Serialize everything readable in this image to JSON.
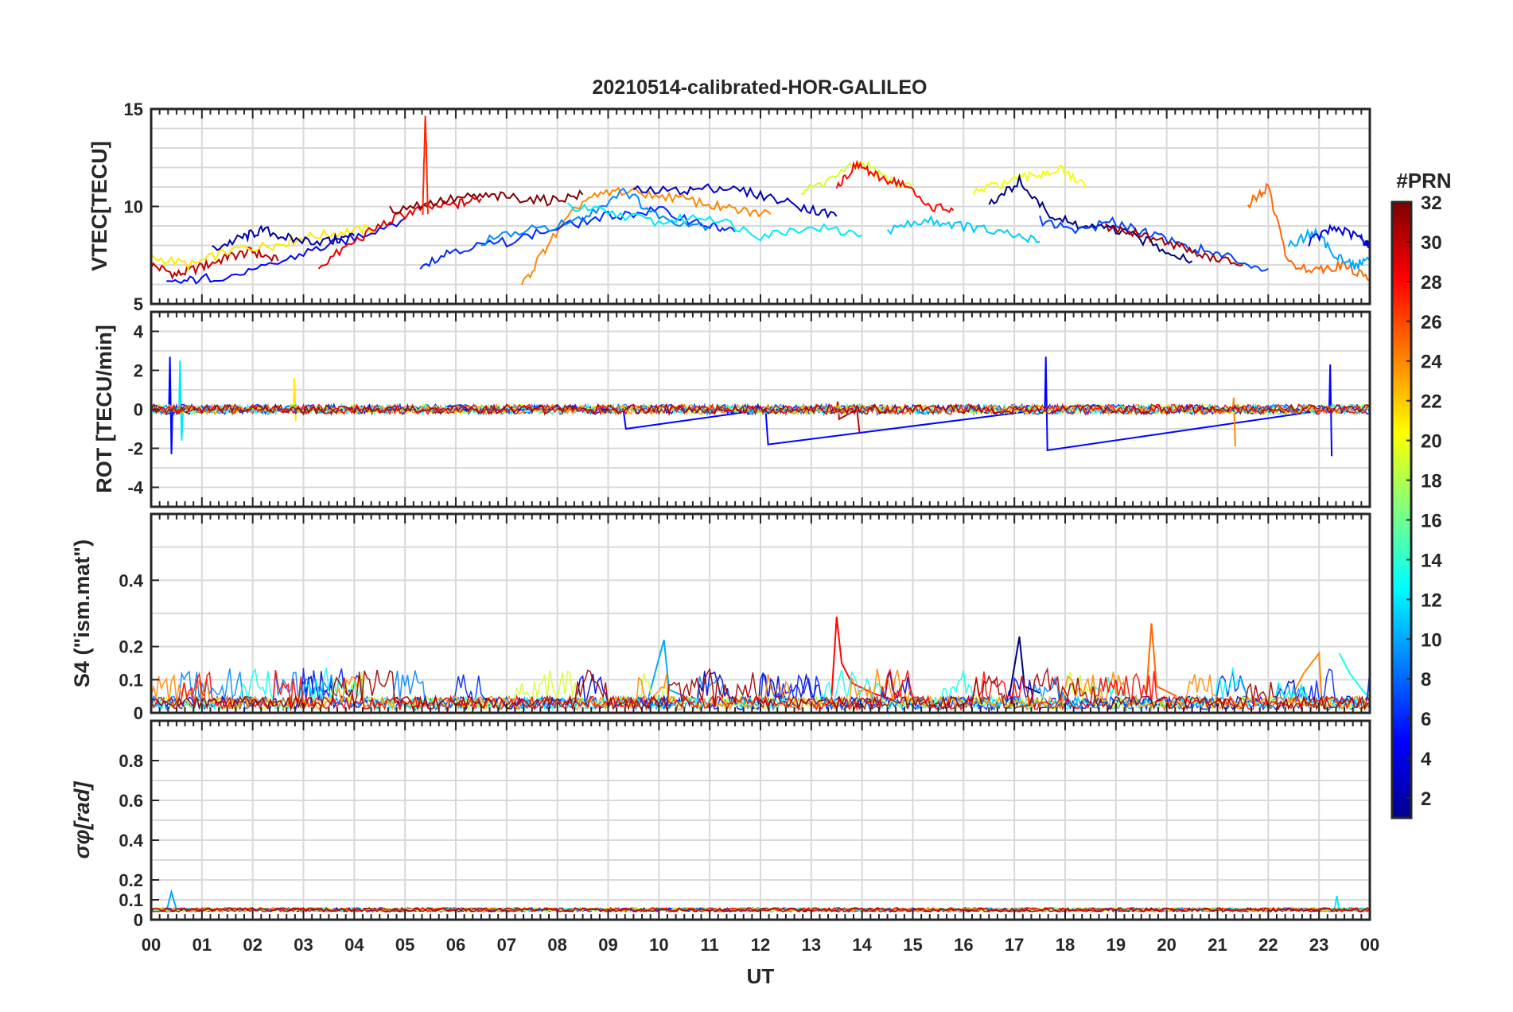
{
  "title": "20210514-calibrated-HOR-GALILEO",
  "colorbar": {
    "label": "#PRN",
    "range": [
      1,
      32
    ],
    "ticks": [
      "32",
      "30",
      "28",
      "26",
      "24",
      "22",
      "20",
      "18",
      "16",
      "14",
      "12",
      "10",
      "8",
      "6",
      "4",
      "2"
    ],
    "colormap": "jet"
  },
  "chart_data": [
    {
      "type": "line",
      "panel": "vtec",
      "ylabel": "VTEC[TECU]",
      "ylim": [
        5,
        15
      ],
      "yticks": [
        "15",
        "10",
        "5"
      ],
      "xlim": [
        0,
        24
      ],
      "grid": true,
      "series": [
        {
          "name": "PRN 30",
          "prn": 30,
          "x": [
            0,
            0.5,
            1,
            1.5,
            2,
            2.5
          ],
          "y": [
            7,
            6.5,
            6.9,
            7.4,
            7.7,
            7.2
          ]
        },
        {
          "name": "PRN 21",
          "prn": 21,
          "x": [
            0,
            0.8,
            1.6,
            2.4,
            3,
            3.8,
            4.5
          ],
          "y": [
            7.4,
            7.0,
            7.8,
            8.0,
            8.4,
            8.7,
            8.9
          ]
        },
        {
          "name": "PRN 5",
          "prn": 5,
          "x": [
            0.3,
            1,
            2,
            3,
            4,
            5
          ],
          "y": [
            6.0,
            6.3,
            6.6,
            7.6,
            8.4,
            9.4
          ]
        },
        {
          "name": "PRN 2",
          "prn": 2,
          "x": [
            1.2,
            1.8,
            2.2,
            2.8,
            3.5,
            4.0
          ],
          "y": [
            7.8,
            8.4,
            8.8,
            8.3,
            8.2,
            8.5
          ]
        },
        {
          "name": "PRN 29",
          "prn": 29,
          "x": [
            3.3,
            4,
            4.7,
            5.3,
            6,
            6.5
          ],
          "y": [
            6.9,
            8.2,
            9.3,
            9.9,
            10.1,
            10.4
          ]
        },
        {
          "name": "PRN 32",
          "prn": 32,
          "x": [
            4.7,
            5.5,
            6.3,
            7,
            7.8,
            8.5
          ],
          "y": [
            9.8,
            10.2,
            10.5,
            10.5,
            10.3,
            10.6
          ]
        },
        {
          "name": "PRN 27",
          "prn": 27,
          "x": [
            5.35,
            5.4,
            5.45
          ],
          "y": [
            9.8,
            14.8,
            9.6
          ]
        },
        {
          "name": "PRN 24",
          "prn": 24,
          "x": [
            7.3,
            7.8,
            8.5,
            9.2,
            10,
            10.8,
            11.5,
            12.2
          ],
          "y": [
            5.9,
            8.0,
            10.3,
            10.8,
            10.6,
            10.2,
            9.8,
            9.6
          ]
        },
        {
          "name": "PRN 6",
          "prn": 6,
          "x": [
            5.3,
            6,
            7,
            8,
            9,
            10,
            11,
            11.5
          ],
          "y": [
            7.0,
            7.8,
            8.2,
            8.9,
            9.5,
            9.8,
            9.0,
            8.7
          ]
        },
        {
          "name": "PRN 9",
          "prn": 9,
          "x": [
            6.5,
            7.5,
            8.5,
            9.3,
            10,
            11
          ],
          "y": [
            8.2,
            8.8,
            9.3,
            10.9,
            9.4,
            9.0
          ]
        },
        {
          "name": "PRN 12",
          "prn": 12,
          "x": [
            8.2,
            9,
            10,
            11,
            12,
            13,
            14
          ],
          "y": [
            10.0,
            9.7,
            9.2,
            9.5,
            8.5,
            9.0,
            8.5
          ]
        },
        {
          "name": "PRN 3",
          "prn": 3,
          "x": [
            9.5,
            10.5,
            11.2,
            12,
            12.8,
            13.5
          ],
          "y": [
            10.8,
            10.8,
            11.0,
            10.6,
            10.0,
            9.5
          ]
        },
        {
          "name": "PRN 19",
          "prn": 19,
          "x": [
            12.8,
            13.3,
            14,
            14.5,
            15
          ],
          "y": [
            10.7,
            11.3,
            12.3,
            11.4,
            11.0
          ]
        },
        {
          "name": "PRN 28",
          "prn": 28,
          "x": [
            13.5,
            13.9,
            14.3,
            14.8,
            15.3,
            15.8
          ],
          "y": [
            11.0,
            12.2,
            11.5,
            11.2,
            10.0,
            9.8
          ]
        },
        {
          "name": "PRN 11",
          "prn": 11,
          "x": [
            14.5,
            15.3,
            16,
            16.8,
            17.5
          ],
          "y": [
            8.8,
            9.3,
            9.0,
            8.6,
            8.2
          ]
        },
        {
          "name": "PRN 20",
          "prn": 20,
          "x": [
            16.2,
            16.8,
            17.4,
            17.9,
            18.4
          ],
          "y": [
            10.7,
            11.2,
            11.6,
            11.9,
            11.0
          ]
        },
        {
          "name": "PRN 1",
          "prn": 1,
          "x": [
            16.5,
            17.1,
            17.7,
            18.3,
            19,
            19.8,
            20.5
          ],
          "y": [
            10.0,
            11.3,
            9.5,
            9.0,
            8.8,
            8.0,
            7.2
          ]
        },
        {
          "name": "PRN 7",
          "prn": 7,
          "x": [
            17.5,
            18.2,
            19,
            19.7,
            20.5,
            21.2,
            22
          ],
          "y": [
            9.3,
            8.8,
            9.2,
            8.6,
            7.9,
            7.4,
            6.8
          ]
        },
        {
          "name": "PRN 31",
          "prn": 31,
          "x": [
            18.8,
            19.5,
            20.2,
            20.8,
            21.5
          ],
          "y": [
            9.0,
            8.6,
            8.0,
            7.4,
            7.0
          ]
        },
        {
          "name": "PRN 25",
          "prn": 25,
          "x": [
            21.6,
            22,
            22.4,
            23,
            23.5,
            24
          ],
          "y": [
            10.1,
            11.0,
            7.0,
            6.8,
            7.0,
            6.2
          ]
        },
        {
          "name": "PRN 10",
          "prn": 10,
          "x": [
            22.4,
            22.9,
            23.3,
            23.7,
            24
          ],
          "y": [
            8.0,
            8.7,
            7.6,
            6.9,
            7.4
          ]
        },
        {
          "name": "PRN 4",
          "prn": 4,
          "x": [
            22.8,
            23.3,
            23.8,
            24
          ],
          "y": [
            8.2,
            8.9,
            8.4,
            8.0
          ]
        }
      ]
    },
    {
      "type": "line",
      "panel": "rot",
      "ylabel": "ROT [TECU/min]",
      "ylim": [
        -5,
        5
      ],
      "yticks": [
        "4",
        "2",
        "0",
        "-2",
        "-4"
      ],
      "xlim": [
        0,
        24
      ],
      "grid": true,
      "series": [
        {
          "name": "PRN 5 spikes",
          "prn": 5,
          "x": [
            0.35,
            0.37,
            0.4,
            0.42,
            9.3,
            9.35,
            12.1,
            12.15,
            17.6,
            17.62,
            17.65,
            23.2,
            23.22,
            23.25
          ],
          "y": [
            0,
            2.7,
            -2.3,
            0,
            0,
            -1.0,
            0,
            -1.8,
            0,
            2.7,
            -2.1,
            0,
            2.3,
            -2.4
          ]
        },
        {
          "name": "PRN 12 spikes",
          "prn": 12,
          "x": [
            0.55,
            0.57,
            0.6,
            0.63
          ],
          "y": [
            0,
            2.5,
            -1.6,
            0
          ]
        },
        {
          "name": "PRN 21 spike",
          "prn": 21,
          "x": [
            2.8,
            2.82,
            2.85
          ],
          "y": [
            0,
            1.6,
            -0.6
          ]
        },
        {
          "name": "PRN 24 spike",
          "prn": 24,
          "x": [
            21.3,
            21.32,
            21.35
          ],
          "y": [
            0,
            0.6,
            -1.9
          ]
        },
        {
          "name": "PRN 30 spike",
          "prn": 30,
          "x": [
            13.5,
            13.52,
            13.55,
            13.9,
            13.95
          ],
          "y": [
            0,
            0.4,
            -0.5,
            0,
            -1.2
          ]
        }
      ]
    },
    {
      "type": "line",
      "panel": "s4",
      "ylabel": "S4 (\"ism.mat\")",
      "ylim": [
        0,
        0.6
      ],
      "yticks": [
        "0.4",
        "0.2",
        "0.1",
        "0"
      ],
      "xlim": [
        0,
        24
      ],
      "grid": true,
      "series": [
        {
          "name": "PRN 28 peak",
          "prn": 28,
          "x": [
            13.4,
            13.5,
            13.6,
            13.8,
            14.2,
            14.6
          ],
          "y": [
            0.05,
            0.29,
            0.15,
            0.09,
            0.06,
            0.04
          ]
        },
        {
          "name": "PRN 25 peak",
          "prn": 25,
          "x": [
            19.6,
            19.7,
            19.8,
            20.2
          ],
          "y": [
            0.06,
            0.27,
            0.08,
            0.05
          ]
        },
        {
          "name": "PRN 1 peak",
          "prn": 1,
          "x": [
            16.9,
            17.1,
            17.2,
            17.5
          ],
          "y": [
            0.05,
            0.23,
            0.08,
            0.06
          ]
        },
        {
          "name": "PRN 10 peak",
          "prn": 10,
          "x": [
            9.8,
            10.1,
            10.2,
            10.5
          ],
          "y": [
            0.05,
            0.22,
            0.07,
            0.05
          ]
        },
        {
          "name": "PRN 24 late",
          "prn": 24,
          "x": [
            22.4,
            22.7,
            23.0,
            23.05
          ],
          "y": [
            0.03,
            0.12,
            0.18,
            0.04
          ]
        },
        {
          "name": "PRN 13 late",
          "prn": 13,
          "x": [
            23.4,
            23.6,
            23.9,
            24
          ],
          "y": [
            0.18,
            0.12,
            0.06,
            0.05
          ]
        }
      ]
    },
    {
      "type": "line",
      "panel": "sigma_phi",
      "ylabel": "σφ[rad]",
      "ylim": [
        0,
        1
      ],
      "yticks": [
        "0.8",
        "0.6",
        "0.4",
        "0.2",
        "0.1",
        "0"
      ],
      "xlim": [
        0,
        24
      ],
      "xticks": [
        "00",
        "01",
        "02",
        "03",
        "04",
        "05",
        "06",
        "07",
        "08",
        "09",
        "10",
        "11",
        "12",
        "13",
        "14",
        "15",
        "16",
        "17",
        "18",
        "19",
        "20",
        "21",
        "22",
        "23",
        "00"
      ],
      "xlabel": "UT",
      "grid": true,
      "series": [
        {
          "name": "PRN 10 spike",
          "prn": 10,
          "x": [
            0.3,
            0.4,
            0.5
          ],
          "y": [
            0.04,
            0.14,
            0.05
          ]
        },
        {
          "name": "PRN 12 spike",
          "prn": 12,
          "x": [
            23.3,
            23.35,
            23.4
          ],
          "y": [
            0.04,
            0.12,
            0.04
          ]
        }
      ]
    }
  ]
}
